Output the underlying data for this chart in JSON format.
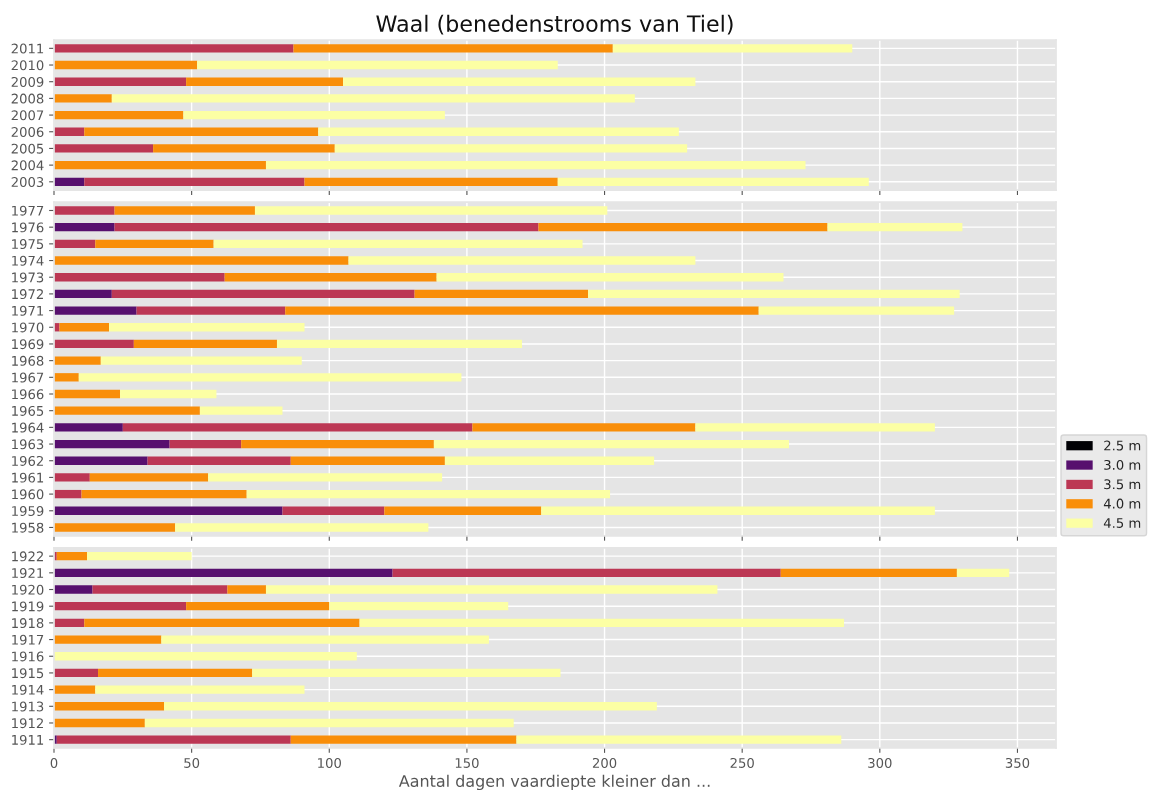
{
  "chart_data": [
    {
      "type": "bar",
      "orientation": "horizontal",
      "stacked": true,
      "title": "Waal (benedenstrooms van Tiel)",
      "categories": [
        "2011",
        "2010",
        "2009",
        "2008",
        "2007",
        "2006",
        "2005",
        "2004",
        "2003"
      ],
      "series": [
        {
          "color": "#57106e",
          "values": [
            0,
            0,
            0,
            0,
            0,
            0,
            0,
            0,
            11
          ]
        },
        {
          "color": "#bc3754",
          "values": [
            87,
            0,
            48,
            0,
            0,
            11,
            36,
            0,
            80
          ]
        },
        {
          "color": "#f98e09",
          "values": [
            116,
            52,
            57,
            21,
            47,
            85,
            66,
            77,
            92
          ]
        },
        {
          "color": "#fcffa4",
          "values": [
            87,
            131,
            128,
            190,
            95,
            131,
            128,
            196,
            113
          ]
        }
      ],
      "xlim": [
        0,
        364
      ],
      "xticks": [
        0,
        50,
        100,
        150,
        200,
        250,
        300,
        350
      ],
      "grid": true,
      "tick_labels": "y"
    },
    {
      "type": "bar",
      "orientation": "horizontal",
      "stacked": true,
      "categories": [
        "1977",
        "1976",
        "1975",
        "1974",
        "1973",
        "1972",
        "1971",
        "1970",
        "1969",
        "1968",
        "1967",
        "1966",
        "1965",
        "1964",
        "1963",
        "1962",
        "1961",
        "1960",
        "1959",
        "1958"
      ],
      "series": [
        {
          "name": "2.5 m",
          "color": "#000004",
          "values": [
            0,
            0,
            0,
            0,
            0,
            0,
            0,
            0,
            0,
            0,
            0,
            0,
            0,
            0,
            0,
            0,
            0,
            0,
            0,
            0
          ]
        },
        {
          "name": "3.0 m",
          "color": "#57106e",
          "values": [
            0,
            22,
            0,
            0,
            0,
            21,
            30,
            0,
            0,
            0,
            0,
            0,
            0,
            25,
            42,
            34,
            0,
            0,
            83,
            0
          ]
        },
        {
          "name": "3.5 m",
          "color": "#bc3754",
          "values": [
            22,
            154,
            15,
            0,
            62,
            110,
            54,
            2,
            29,
            0,
            0,
            0,
            0,
            127,
            26,
            52,
            13,
            10,
            37,
            0
          ]
        },
        {
          "name": "4.0 m",
          "color": "#f98e09",
          "values": [
            51,
            105,
            43,
            107,
            77,
            63,
            172,
            18,
            52,
            17,
            9,
            24,
            53,
            81,
            70,
            56,
            43,
            60,
            57,
            44
          ]
        },
        {
          "name": "4.5 m",
          "color": "#fcffa4",
          "values": [
            128,
            49,
            134,
            126,
            126,
            135,
            71,
            71,
            89,
            73,
            139,
            35,
            30,
            87,
            129,
            76,
            85,
            132,
            143,
            92
          ]
        }
      ],
      "xlim": [
        0,
        364
      ],
      "xticks": [
        0,
        50,
        100,
        150,
        200,
        250,
        300,
        350
      ],
      "grid": true,
      "tick_labels": "y",
      "legend": "bottom right"
    },
    {
      "type": "bar",
      "orientation": "horizontal",
      "stacked": true,
      "xlabel": "Aantal dagen vaardiepte kleiner dan ...",
      "categories": [
        "1922",
        "1921",
        "1920",
        "1919",
        "1918",
        "1917",
        "1916",
        "1915",
        "1914",
        "1913",
        "1912",
        "1911"
      ],
      "series": [
        {
          "color": "#57106e",
          "values": [
            0,
            123,
            14,
            0,
            0,
            0,
            0,
            0,
            0,
            0,
            0,
            1
          ]
        },
        {
          "color": "#bc3754",
          "values": [
            1,
            141,
            49,
            48,
            11,
            0,
            0,
            16,
            0,
            0,
            0,
            85
          ]
        },
        {
          "color": "#f98e09",
          "values": [
            11,
            64,
            14,
            52,
            100,
            39,
            0,
            56,
            15,
            40,
            33,
            82
          ]
        },
        {
          "color": "#fcffa4",
          "values": [
            38,
            19,
            164,
            65,
            176,
            119,
            110,
            112,
            76,
            179,
            134,
            118
          ]
        }
      ],
      "xlim": [
        0,
        364
      ],
      "xticks": [
        0,
        50,
        100,
        150,
        200,
        250,
        300,
        350
      ],
      "grid": true
    }
  ]
}
